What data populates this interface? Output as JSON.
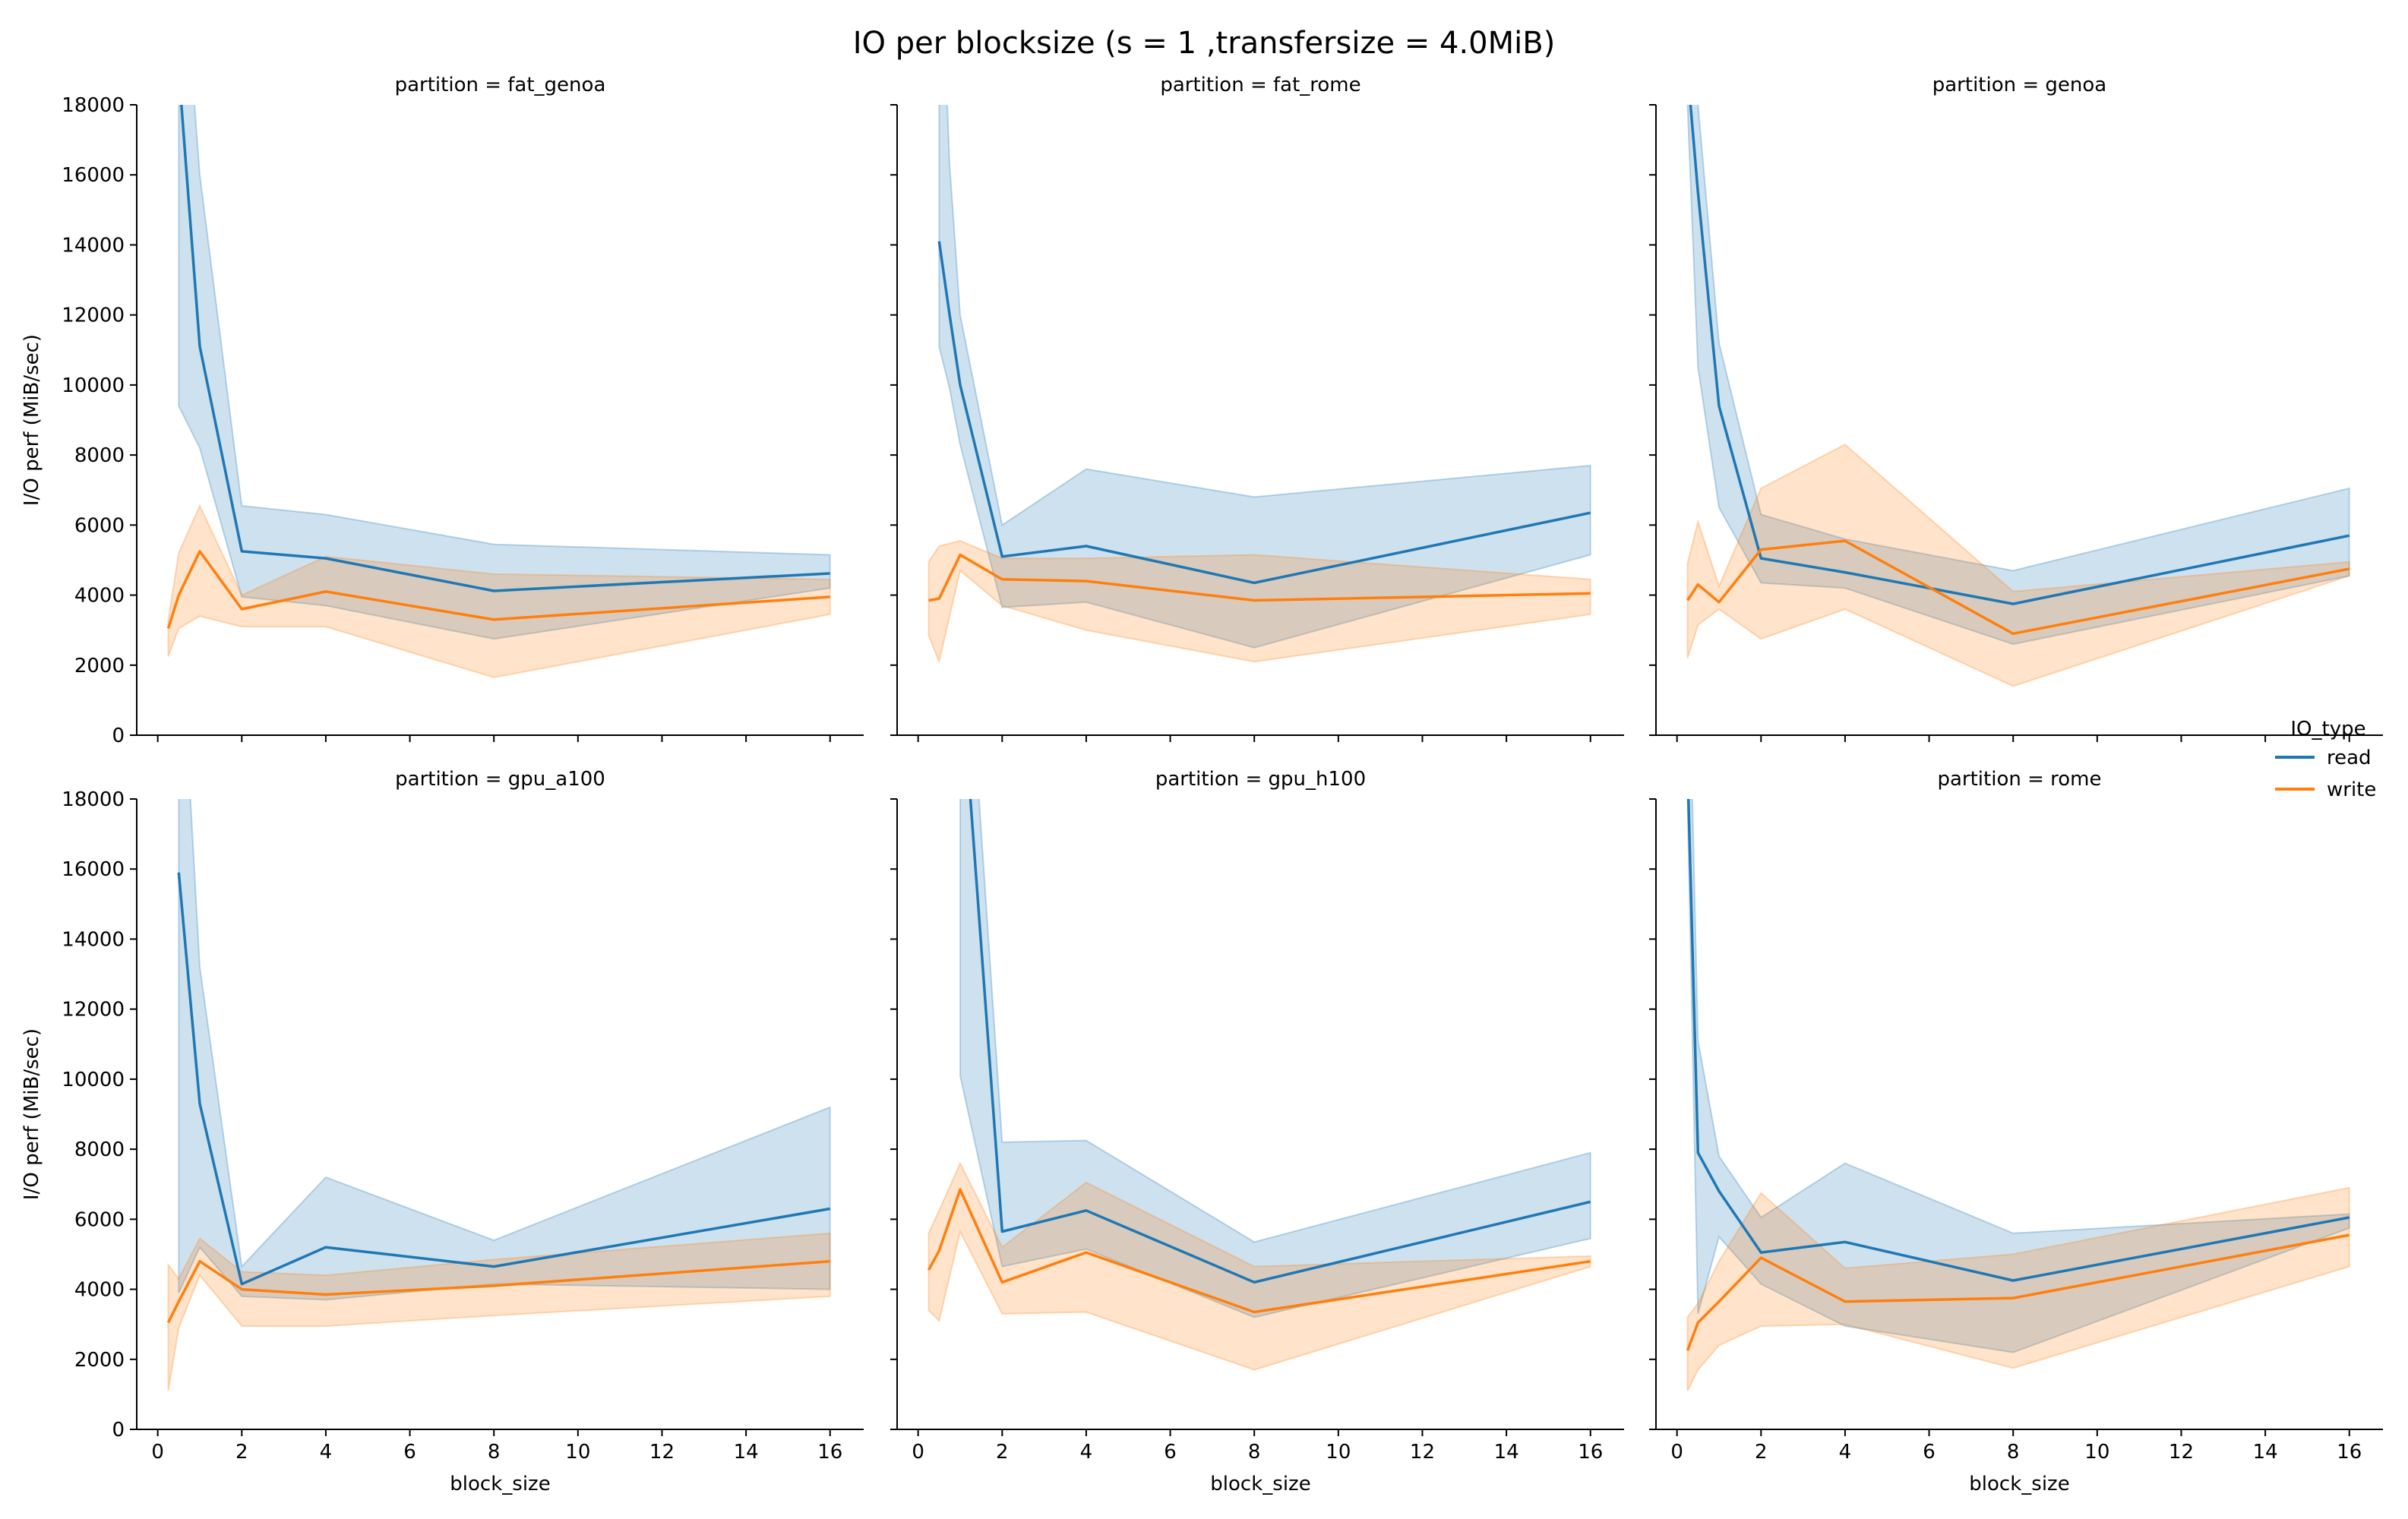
{
  "figure": {
    "title": "IO per blocksize (s = 1 ,transfersize = 4.0MiB)"
  },
  "legend": {
    "title": "IO_type",
    "entries": [
      {
        "name": "read",
        "color": "#1f77b4",
        "band_color": "#1f77b4"
      },
      {
        "name": "write",
        "color": "#ff7f0e",
        "band_color": "#ff7f0e"
      }
    ]
  },
  "chart_data": [
    {
      "type": "line",
      "title": "partition = fat_genoa",
      "xlabel": "",
      "ylabel": "I/O perf (MiB/sec)",
      "xlim": [
        -0.5,
        16.8
      ],
      "ylim": [
        0,
        18000
      ],
      "xticks": [
        0,
        2,
        4,
        6,
        8,
        10,
        12,
        14,
        16
      ],
      "yticks": [
        0,
        2000,
        4000,
        6000,
        8000,
        10000,
        12000,
        14000,
        16000,
        18000
      ],
      "series": [
        {
          "name": "read",
          "x": [
            0.5,
            1,
            2,
            4,
            8,
            16
          ],
          "values": [
            19000,
            11100,
            5250,
            5050,
            4120,
            4620
          ],
          "lower": [
            9400,
            8200,
            3950,
            3700,
            2750,
            4200
          ],
          "upper": [
            24000,
            16000,
            6550,
            6300,
            5450,
            5150
          ]
        },
        {
          "name": "write",
          "x": [
            0.25,
            0.5,
            1,
            2,
            4,
            8,
            16
          ],
          "values": [
            3050,
            4000,
            5250,
            3600,
            4100,
            3300,
            3950
          ],
          "lower": [
            2250,
            3050,
            3400,
            3100,
            3100,
            1650,
            3450
          ],
          "upper": [
            3300,
            5200,
            6550,
            4000,
            5100,
            4600,
            4450
          ]
        }
      ]
    },
    {
      "type": "line",
      "title": "partition = fat_rome",
      "xlabel": "",
      "ylabel": "",
      "xlim": [
        -0.5,
        16.8
      ],
      "ylim": [
        0,
        18000
      ],
      "xticks": [
        0,
        2,
        4,
        6,
        8,
        10,
        12,
        14,
        16
      ],
      "yticks": [
        0,
        2000,
        4000,
        6000,
        8000,
        10000,
        12000,
        14000,
        16000,
        18000
      ],
      "series": [
        {
          "name": "read",
          "x": [
            0.5,
            0.75,
            1,
            2,
            4,
            8,
            16
          ],
          "values": [
            14100,
            12000,
            10000,
            5100,
            5400,
            4350,
            6350
          ],
          "lower": [
            11100,
            9900,
            8300,
            3650,
            3800,
            2500,
            5150
          ],
          "upper": [
            24000,
            16300,
            12000,
            6000,
            7600,
            6800,
            7700
          ]
        },
        {
          "name": "write",
          "x": [
            0.25,
            0.5,
            1,
            2,
            4,
            8,
            16
          ],
          "values": [
            3850,
            3900,
            5150,
            4450,
            4400,
            3850,
            4050
          ],
          "lower": [
            2850,
            2100,
            4700,
            3700,
            3000,
            2100,
            3450
          ],
          "upper": [
            4950,
            5400,
            5550,
            5050,
            5050,
            5150,
            4450
          ]
        }
      ]
    },
    {
      "type": "line",
      "title": "partition = genoa",
      "xlabel": "",
      "ylabel": "",
      "xlim": [
        -0.5,
        16.8
      ],
      "ylim": [
        0,
        18000
      ],
      "xticks": [
        0,
        2,
        4,
        6,
        8,
        10,
        12,
        14,
        16
      ],
      "yticks": [
        0,
        2000,
        4000,
        6000,
        8000,
        10000,
        12000,
        14000,
        16000,
        18000
      ],
      "series": [
        {
          "name": "read",
          "x": [
            0.25,
            0.5,
            1,
            2,
            4,
            8,
            16
          ],
          "values": [
            19000,
            15500,
            9400,
            5050,
            4650,
            3750,
            5700
          ],
          "lower": [
            18000,
            10500,
            6500,
            4350,
            4200,
            2600,
            4550
          ],
          "upper": [
            24000,
            18000,
            11200,
            6300,
            5600,
            4700,
            7050
          ]
        },
        {
          "name": "write",
          "x": [
            0.25,
            0.5,
            1,
            2,
            4,
            8,
            16
          ],
          "values": [
            3850,
            4300,
            3800,
            5300,
            5550,
            2900,
            4750
          ],
          "lower": [
            2200,
            3150,
            3600,
            2750,
            3600,
            1400,
            4550
          ],
          "upper": [
            4900,
            6100,
            4250,
            7050,
            8300,
            4100,
            4950
          ]
        }
      ]
    },
    {
      "type": "line",
      "title": "partition = gpu_a100",
      "xlabel": "block_size",
      "ylabel": "I/O perf (MiB/sec)",
      "xlim": [
        -0.5,
        16.8
      ],
      "ylim": [
        0,
        18000
      ],
      "xticks": [
        0,
        2,
        4,
        6,
        8,
        10,
        12,
        14,
        16
      ],
      "yticks": [
        0,
        2000,
        4000,
        6000,
        8000,
        10000,
        12000,
        14000,
        16000,
        18000
      ],
      "series": [
        {
          "name": "read",
          "x": [
            0.5,
            1,
            2,
            4,
            8,
            16
          ],
          "values": [
            15900,
            9300,
            4150,
            5200,
            4650,
            6300
          ],
          "lower": [
            3900,
            5200,
            3800,
            3700,
            4150,
            4000
          ],
          "upper": [
            24000,
            13200,
            4650,
            7200,
            5400,
            9200
          ]
        },
        {
          "name": "write",
          "x": [
            0.25,
            0.5,
            1,
            2,
            4,
            8,
            16
          ],
          "values": [
            3050,
            3650,
            4800,
            4000,
            3850,
            4100,
            4800
          ],
          "lower": [
            1100,
            2900,
            4400,
            2950,
            2950,
            3250,
            3800
          ],
          "upper": [
            4700,
            4300,
            5450,
            4500,
            4400,
            4850,
            5600
          ]
        }
      ]
    },
    {
      "type": "line",
      "title": "partition = gpu_h100",
      "xlabel": "block_size",
      "ylabel": "",
      "xlim": [
        -0.5,
        16.8
      ],
      "ylim": [
        0,
        18000
      ],
      "xticks": [
        0,
        2,
        4,
        6,
        8,
        10,
        12,
        14,
        16
      ],
      "yticks": [
        0,
        2000,
        4000,
        6000,
        8000,
        10000,
        12000,
        14000,
        16000,
        18000
      ],
      "series": [
        {
          "name": "read",
          "x": [
            1,
            2,
            4,
            8,
            16
          ],
          "values": [
            22000,
            5650,
            6250,
            4200,
            6500
          ],
          "lower": [
            10100,
            4650,
            5150,
            3200,
            5450
          ],
          "upper": [
            26000,
            8200,
            8250,
            5350,
            7900
          ]
        },
        {
          "name": "write",
          "x": [
            0.25,
            0.5,
            1,
            2,
            4,
            8,
            16
          ],
          "values": [
            4550,
            5100,
            6850,
            4200,
            5050,
            3350,
            4800
          ],
          "lower": [
            3400,
            3100,
            5650,
            3300,
            3350,
            1700,
            4650
          ],
          "upper": [
            5600,
            6250,
            7600,
            5200,
            7050,
            4650,
            4950
          ]
        }
      ]
    },
    {
      "type": "line",
      "title": "partition = rome",
      "xlabel": "block_size",
      "ylabel": "",
      "xlim": [
        -0.5,
        16.8
      ],
      "ylim": [
        0,
        18000
      ],
      "xticks": [
        0,
        2,
        4,
        6,
        8,
        10,
        12,
        14,
        16
      ],
      "yticks": [
        0,
        2000,
        4000,
        6000,
        8000,
        10000,
        12000,
        14000,
        16000,
        18000
      ],
      "series": [
        {
          "name": "read",
          "x": [
            0.25,
            0.5,
            1,
            2,
            4,
            8,
            16
          ],
          "values": [
            19000,
            7900,
            6800,
            5050,
            5350,
            4250,
            6050
          ],
          "lower": [
            18000,
            3300,
            5500,
            4150,
            2950,
            2200,
            5750
          ],
          "upper": [
            24000,
            11100,
            7800,
            6050,
            7600,
            5600,
            6150
          ]
        },
        {
          "name": "write",
          "x": [
            0.25,
            0.5,
            1,
            2,
            4,
            8,
            16
          ],
          "values": [
            2250,
            3050,
            3650,
            4900,
            3650,
            3750,
            5550
          ],
          "lower": [
            1100,
            1700,
            2400,
            2950,
            3000,
            1750,
            4650
          ],
          "upper": [
            3200,
            3600,
            4800,
            6750,
            4600,
            5000,
            6900
          ]
        }
      ]
    }
  ]
}
